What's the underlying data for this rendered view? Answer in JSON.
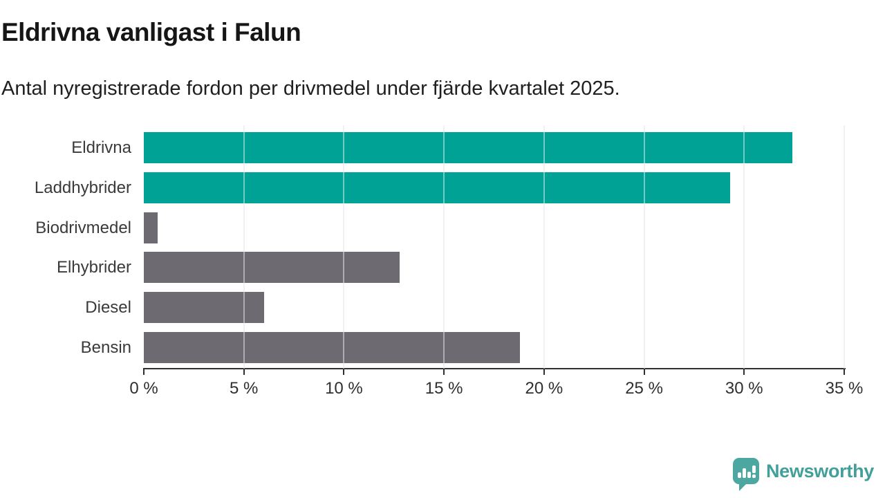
{
  "title": "Eldrivna vanligast i Falun",
  "subtitle": "Antal nyregistrerade fordon per drivmedel under fjärde kvartalet 2025.",
  "colors": {
    "highlight_bar": "#00a296",
    "default_bar": "#6d6a72",
    "axis": "#2f2f2f",
    "gridline": "#e6e6ea",
    "logo_teal": "#4ca7a1",
    "logo_text_teal": "#429f99"
  },
  "chart_data": {
    "type": "bar",
    "orientation": "horizontal",
    "title": "Eldrivna vanligast i Falun",
    "subtitle": "Antal nyregistrerade fordon per drivmedel under fjärde kvartalet 2025.",
    "categories": [
      "Eldrivna",
      "Laddhybrider",
      "Biodrivmedel",
      "Elhybrider",
      "Diesel",
      "Bensin"
    ],
    "values": [
      32.4,
      29.3,
      0.7,
      12.8,
      6.0,
      18.8
    ],
    "unit": "%",
    "bar_colors": [
      "#00a296",
      "#00a296",
      "#6d6a72",
      "#6d6a72",
      "#6d6a72",
      "#6d6a72"
    ],
    "xlim": [
      0,
      35
    ],
    "x_ticks": [
      0,
      5,
      10,
      15,
      20,
      25,
      30,
      35
    ],
    "x_tick_labels": [
      "0 %",
      "5 %",
      "10 %",
      "15 %",
      "20 %",
      "25 %",
      "30 %",
      "35 %"
    ],
    "grid": true,
    "legend": false,
    "xlabel": "",
    "ylabel": ""
  },
  "logo": {
    "text": "Newsworthy",
    "icon": "newsworthy-speech-bubble-chart-icon"
  }
}
